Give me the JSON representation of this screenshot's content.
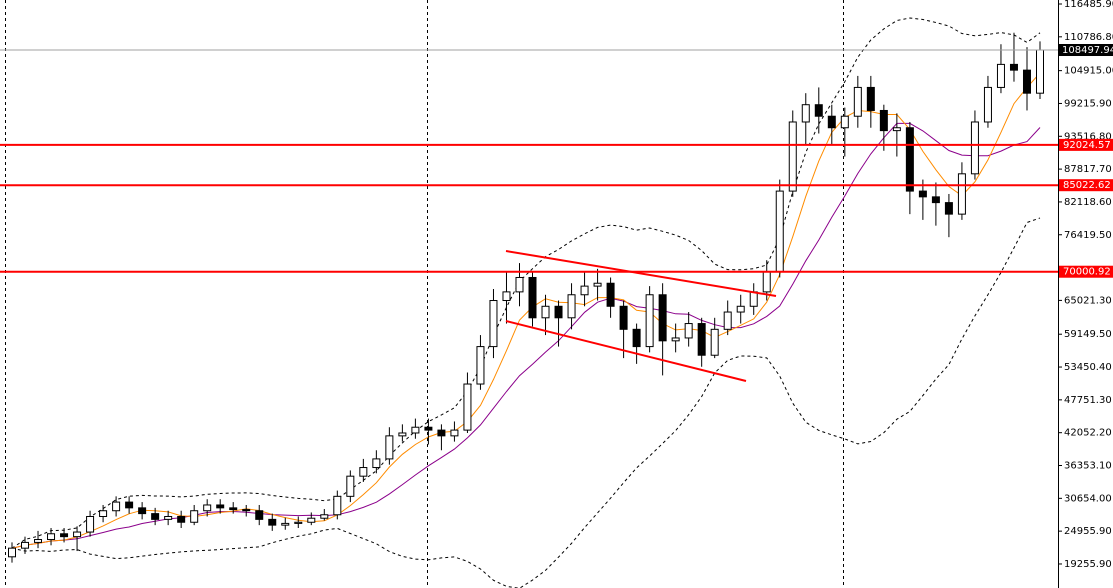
{
  "chart_data": {
    "type": "candlestick",
    "open": [
      20500,
      22000,
      23000,
      23500,
      24500,
      24000,
      24800,
      27500,
      28500,
      30000,
      29000,
      28000,
      27000,
      27500,
      26500,
      28500,
      29500,
      29000,
      28700,
      28500,
      27000,
      26000,
      26300,
      26500,
      27200,
      27800,
      31000,
      34500,
      36000,
      37500,
      41500,
      42000,
      43000,
      42500,
      41500,
      42500,
      50500,
      57000,
      65000,
      66500,
      69000,
      62000,
      64000,
      62000,
      66000,
      67500,
      68000,
      64000,
      60000,
      57000,
      66000,
      58000,
      58500,
      61000,
      55500,
      60000,
      63000,
      64000,
      66500,
      70000,
      84000,
      96000,
      99000,
      97000,
      95000,
      97000,
      102000,
      98000,
      94500,
      95000,
      84000,
      83000,
      82000,
      80000,
      87000,
      96000,
      102000,
      106000,
      105000,
      101000
    ],
    "high": [
      23000,
      24000,
      25000,
      25500,
      25500,
      25800,
      28500,
      29500,
      31000,
      31000,
      30000,
      29000,
      28500,
      28500,
      29500,
      30500,
      30500,
      30000,
      29500,
      29500,
      28000,
      27300,
      27500,
      28200,
      28800,
      32000,
      35500,
      37500,
      39000,
      43000,
      43500,
      44500,
      44500,
      43500,
      44000,
      52500,
      59000,
      67000,
      70000,
      71500,
      70000,
      66000,
      65000,
      68000,
      70000,
      70500,
      69000,
      65000,
      61000,
      67500,
      68000,
      61000,
      63000,
      62000,
      62000,
      65000,
      66000,
      68000,
      72000,
      86000,
      98000,
      101000,
      102000,
      99000,
      98500,
      104000,
      104000,
      99000,
      97500,
      96000,
      86000,
      85500,
      83500,
      89000,
      98000,
      104000,
      109500,
      111500,
      109000,
      110000
    ],
    "low": [
      19500,
      21000,
      22000,
      22500,
      23000,
      21500,
      24000,
      26500,
      27500,
      28000,
      27000,
      26000,
      26000,
      25500,
      26000,
      27500,
      28000,
      28000,
      27500,
      26000,
      25000,
      25200,
      25500,
      26000,
      26800,
      27000,
      30000,
      33500,
      35000,
      36500,
      40500,
      41000,
      40000,
      39000,
      40500,
      42000,
      49500,
      55000,
      61000,
      64000,
      60500,
      59000,
      57000,
      60000,
      64000,
      65000,
      62000,
      55000,
      54000,
      56000,
      52000,
      56000,
      57000,
      53500,
      55000,
      59000,
      61000,
      62500,
      65000,
      69000,
      83000,
      92000,
      94000,
      92000,
      90000,
      95000,
      95000,
      91000,
      90000,
      80000,
      79000,
      78000,
      76000,
      79000,
      86000,
      95000,
      101000,
      103000,
      98000,
      100000
    ],
    "close": [
      22000,
      23000,
      23500,
      24500,
      24000,
      24800,
      27500,
      28500,
      30000,
      29000,
      28000,
      27000,
      27500,
      26500,
      28500,
      29500,
      29000,
      28700,
      28500,
      27000,
      26000,
      26300,
      26500,
      27200,
      27800,
      31000,
      34500,
      36000,
      37500,
      41500,
      42000,
      43000,
      42500,
      41500,
      42500,
      50500,
      57000,
      65000,
      66500,
      69000,
      62000,
      64000,
      62000,
      66000,
      67500,
      68000,
      64000,
      60000,
      57000,
      66000,
      58000,
      58500,
      61000,
      55500,
      60000,
      63000,
      64000,
      66500,
      70000,
      84000,
      96000,
      99000,
      97000,
      95000,
      97000,
      102000,
      98000,
      94500,
      95000,
      84000,
      83000,
      82000,
      80000,
      87000,
      96000,
      102000,
      106000,
      105000,
      101000,
      108497.94
    ],
    "ylim": [
      15084,
      117180
    ],
    "yticks": [
      {
        "value": 116485.9,
        "label": "116485.90"
      },
      {
        "value": 110786.8,
        "label": "110786.80"
      },
      {
        "value": 104915,
        "label": "104915.00"
      },
      {
        "value": 99215.9,
        "label": "99215.90"
      },
      {
        "value": 93516.8,
        "label": "93516.80"
      },
      {
        "value": 87817.7,
        "label": "87817.70"
      },
      {
        "value": 82118.6,
        "label": "82118.60"
      },
      {
        "value": 76419.5,
        "label": "76419.50"
      },
      {
        "value": 65021.3,
        "label": "65021.30"
      },
      {
        "value": 59149.5,
        "label": "59149.50"
      },
      {
        "value": 53450.4,
        "label": "53450.40"
      },
      {
        "value": 47751.3,
        "label": "47751.30"
      },
      {
        "value": 42052.2,
        "label": "42052.20"
      },
      {
        "value": 36353.1,
        "label": "36353.10"
      },
      {
        "value": 30654,
        "label": "30654.00"
      },
      {
        "value": 24955.9,
        "label": "24955.90"
      },
      {
        "value": 19255.9,
        "label": "19255.90"
      }
    ],
    "levels": [
      {
        "value": 92024.57,
        "label": "92024.57"
      },
      {
        "value": 85022.62,
        "label": "85022.62"
      },
      {
        "value": 70000.92,
        "label": "70000.92"
      }
    ],
    "level_color": "#ff0000",
    "last_price": {
      "value": 108497.94,
      "label": "108497.94"
    },
    "up_color": "#ffffff",
    "down_color": "#000000"
  }
}
